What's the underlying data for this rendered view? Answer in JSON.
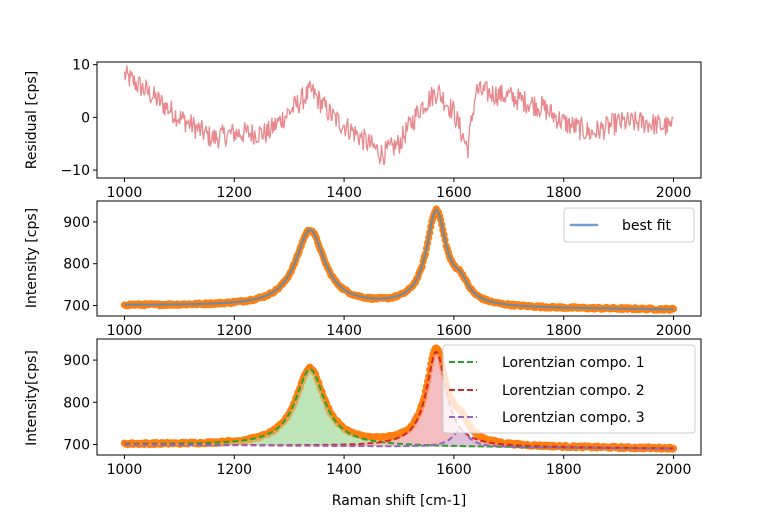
{
  "chart_data": [
    {
      "type": "line",
      "panel": "residual",
      "xlabel": "",
      "ylabel": "Residual [cps]",
      "xlim": [
        950,
        2050
      ],
      "ylim": [
        -11.5,
        10.5
      ],
      "xticks": [
        1000,
        1200,
        1400,
        1600,
        1800,
        2000
      ],
      "yticks": [
        -10,
        0,
        10
      ],
      "xtick_labels": [
        "1000",
        "1200",
        "1400",
        "1600",
        "1800",
        "2000"
      ],
      "ytick_labels": [
        "−10",
        "0",
        "10"
      ],
      "grid": false,
      "series": [
        {
          "color": "#e8898d",
          "style": "noisy line",
          "trend_x": [
            1000,
            1040,
            1100,
            1160,
            1200,
            1260,
            1300,
            1340,
            1380,
            1420,
            1470,
            1500,
            1540,
            1570,
            1600,
            1625,
            1640,
            1700,
            1760,
            1800,
            1850,
            1900,
            1950,
            2000
          ],
          "trend_y": [
            8,
            5,
            0,
            -4,
            -3,
            -3,
            1,
            5,
            0,
            -3,
            -7,
            -5,
            2,
            5,
            1,
            -6,
            5,
            4,
            2,
            -1,
            -3,
            -1,
            -1,
            -2
          ],
          "noise_amplitude": 2.2
        }
      ]
    },
    {
      "type": "scatter+line",
      "panel": "fit",
      "xlabel": "",
      "ylabel": "Intensity [cps]",
      "xlim": [
        950,
        2050
      ],
      "ylim": [
        675,
        950
      ],
      "xticks": [
        1000,
        1200,
        1400,
        1600,
        1800,
        2000
      ],
      "yticks": [
        700,
        800,
        900
      ],
      "xtick_labels": [
        "1000",
        "1200",
        "1400",
        "1600",
        "1800",
        "2000"
      ],
      "ytick_labels": [
        "700",
        "800",
        "900"
      ],
      "grid": false,
      "legend": {
        "position": "upper right",
        "entries": [
          {
            "label": "best fit",
            "color": "#4f86be",
            "style": "solid"
          }
        ]
      },
      "series": [
        {
          "color": "#ff7f0e",
          "style": "data points"
        },
        {
          "name": "best fit",
          "color": "#6f8ba3",
          "style": "solid"
        }
      ]
    },
    {
      "type": "area+line",
      "panel": "components",
      "xlabel": "Raman shift [cm-1]",
      "ylabel": "Intensity[cps]",
      "xlim": [
        950,
        2050
      ],
      "ylim": [
        675,
        950
      ],
      "xticks": [
        1000,
        1200,
        1400,
        1600,
        1800,
        2000
      ],
      "yticks": [
        700,
        800,
        900
      ],
      "xtick_labels": [
        "1000",
        "1200",
        "1400",
        "1600",
        "1800",
        "2000"
      ],
      "ytick_labels": [
        "700",
        "800",
        "900"
      ],
      "grid": false,
      "legend": {
        "position": "upper right",
        "entries": [
          {
            "label": "Lorentzian compo. 1",
            "color": "#2ca02c",
            "style": "dashed"
          },
          {
            "label": "Lorentzian compo. 2",
            "color": "#d62728",
            "style": "dashed"
          },
          {
            "label": "Lorentzian compo. 3",
            "color": "#9467bd",
            "style": "dashed"
          }
        ]
      },
      "baseline": {
        "x": [
          1000,
          2000
        ],
        "y": [
          700,
          690
        ]
      },
      "components": [
        {
          "name": "Lorentzian compo. 1",
          "center": 1338,
          "hwhm": 32,
          "amplitude": 182,
          "color": "#2ca02c",
          "fill": "#b9e2b3"
        },
        {
          "name": "Lorentzian compo. 2",
          "center": 1568,
          "hwhm": 22,
          "amplitude": 225,
          "color": "#d62728",
          "fill": "#f3b9bb"
        },
        {
          "name": "Lorentzian compo. 3",
          "center": 1612,
          "hwhm": 18,
          "amplitude": 40,
          "color": "#9467bd",
          "fill": "#d4c3e6"
        }
      ],
      "data_color": "#ff7f0e"
    }
  ]
}
